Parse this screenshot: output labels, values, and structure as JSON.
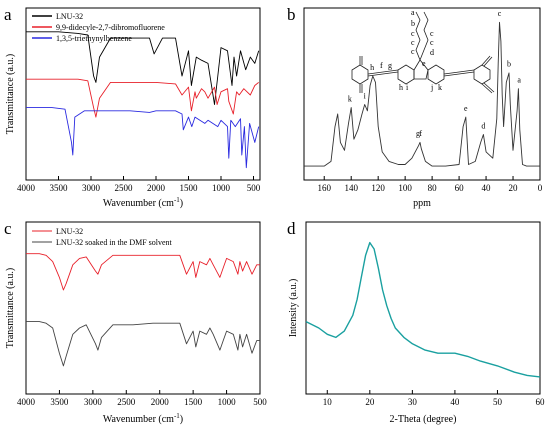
{
  "chart_data": [
    {
      "panel": "a",
      "type": "line",
      "xlabel": "Wavenumber (cm",
      "xlabel_sup": "-1",
      "xlabel_end": ")",
      "ylabel": "Transmittance (a.u.)",
      "xlim": [
        4000,
        400
      ],
      "xticks": [
        "4000",
        "3500",
        "3000",
        "2500",
        "2000",
        "1500",
        "1000",
        "500"
      ],
      "tick_values": [
        4000,
        3500,
        3000,
        2500,
        2000,
        1500,
        1000,
        500
      ],
      "series": [
        {
          "name": "LNU-32",
          "color": "#000000",
          "x": [
            4000,
            3500,
            3200,
            3050,
            2960,
            2925,
            2870,
            2700,
            2400,
            2100,
            2030,
            1900,
            1700,
            1600,
            1500,
            1455,
            1380,
            1300,
            1200,
            1100,
            1050,
            1000,
            900,
            830,
            800,
            760,
            700,
            620,
            550,
            480,
            420
          ],
          "y": [
            0.9,
            0.9,
            0.89,
            0.88,
            0.62,
            0.58,
            0.74,
            0.86,
            0.86,
            0.86,
            0.76,
            0.86,
            0.86,
            0.62,
            0.78,
            0.56,
            0.74,
            0.72,
            0.7,
            0.44,
            0.62,
            0.8,
            0.78,
            0.56,
            0.74,
            0.62,
            0.78,
            0.66,
            0.74,
            0.7,
            0.78
          ]
        },
        {
          "name": "9,9-didecyle-2,7-dibromofluorene",
          "color": "#e8202a",
          "x": [
            4000,
            3500,
            3200,
            3050,
            2960,
            2925,
            2870,
            2700,
            2400,
            2000,
            1700,
            1600,
            1500,
            1455,
            1400,
            1380,
            1300,
            1250,
            1200,
            1100,
            1060,
            1000,
            900,
            880,
            810,
            760,
            720,
            650,
            550,
            480,
            420
          ],
          "y": [
            0.6,
            0.6,
            0.6,
            0.59,
            0.42,
            0.36,
            0.48,
            0.58,
            0.58,
            0.58,
            0.57,
            0.5,
            0.55,
            0.4,
            0.52,
            0.48,
            0.54,
            0.52,
            0.48,
            0.55,
            0.44,
            0.52,
            0.54,
            0.46,
            0.38,
            0.52,
            0.5,
            0.54,
            0.5,
            0.56,
            0.58
          ]
        },
        {
          "name": "1,3,5-triethynylbenzene",
          "color": "#2a2ae0",
          "x": [
            4000,
            3600,
            3400,
            3300,
            3280,
            3250,
            3100,
            2700,
            2400,
            2100,
            2000,
            1700,
            1600,
            1580,
            1500,
            1450,
            1400,
            1250,
            1200,
            1050,
            1000,
            900,
            880,
            850,
            780,
            700,
            680,
            640,
            610,
            560,
            480,
            420
          ],
          "y": [
            0.42,
            0.42,
            0.41,
            0.2,
            0.12,
            0.36,
            0.4,
            0.4,
            0.4,
            0.39,
            0.4,
            0.4,
            0.38,
            0.28,
            0.36,
            0.3,
            0.36,
            0.32,
            0.34,
            0.3,
            0.34,
            0.3,
            0.1,
            0.34,
            0.3,
            0.35,
            0.12,
            0.3,
            0.04,
            0.32,
            0.2,
            0.3
          ]
        }
      ]
    },
    {
      "panel": "b",
      "type": "line",
      "xlabel": "ppm",
      "xlim": [
        175,
        0
      ],
      "xticks": [
        "160",
        "140",
        "120",
        "100",
        "80",
        "60",
        "40",
        "20",
        "0"
      ],
      "tick_values": [
        160,
        140,
        120,
        100,
        80,
        60,
        40,
        20,
        0
      ],
      "series": [
        {
          "name": "",
          "color": "#333333",
          "x": [
            175,
            160,
            155,
            152,
            150,
            148,
            145,
            142,
            140,
            138,
            135,
            132,
            130,
            128,
            126,
            124,
            122,
            120,
            117,
            112,
            105,
            100,
            95,
            90,
            89,
            88,
            85,
            80,
            70,
            60,
            57,
            55,
            53,
            48,
            44,
            42,
            40,
            35,
            32,
            31,
            30,
            29,
            28,
            27,
            25,
            23,
            22,
            20,
            17,
            16,
            15,
            13,
            10,
            5,
            0
          ],
          "y": [
            0.05,
            0.05,
            0.08,
            0.3,
            0.38,
            0.2,
            0.15,
            0.32,
            0.42,
            0.22,
            0.28,
            0.38,
            0.44,
            0.4,
            0.56,
            0.62,
            0.58,
            0.3,
            0.14,
            0.08,
            0.06,
            0.06,
            0.1,
            0.18,
            0.2,
            0.16,
            0.08,
            0.05,
            0.05,
            0.06,
            0.3,
            0.36,
            0.06,
            0.08,
            0.2,
            0.25,
            0.14,
            0.1,
            0.35,
            0.7,
            0.96,
            0.84,
            0.5,
            0.3,
            0.58,
            0.64,
            0.44,
            0.15,
            0.4,
            0.54,
            0.28,
            0.06,
            0.05,
            0.05,
            0.05
          ]
        }
      ],
      "peak_labels": [
        {
          "text": "k",
          "x": 141,
          "y": 0.44
        },
        {
          "text": "i",
          "x": 130,
          "y": 0.46
        },
        {
          "text": "h",
          "x": 124.5,
          "y": 0.64
        },
        {
          "text": "g",
          "x": 90.5,
          "y": 0.22
        },
        {
          "text": "f",
          "x": 88.5,
          "y": 0.22
        },
        {
          "text": "e",
          "x": 55,
          "y": 0.38
        },
        {
          "text": "d",
          "x": 42,
          "y": 0.27
        },
        {
          "text": "c",
          "x": 30,
          "y": 0.98
        },
        {
          "text": "b",
          "x": 23,
          "y": 0.66
        },
        {
          "text": "a",
          "x": 15.5,
          "y": 0.56
        }
      ],
      "structure_labels": [
        "a",
        "b",
        "c",
        "c",
        "c",
        "c",
        "c",
        "d",
        "e",
        "f",
        "g",
        "h",
        "i",
        "j",
        "k"
      ]
    },
    {
      "panel": "c",
      "type": "line",
      "xlabel": "Wavenumber (cm",
      "xlabel_sup": "-1",
      "xlabel_end": ")",
      "ylabel": "Transmittance (a.u.)",
      "xlim": [
        4000,
        500
      ],
      "xticks": [
        "4000",
        "3500",
        "3000",
        "2500",
        "2000",
        "1500",
        "1000",
        "500"
      ],
      "tick_values": [
        4000,
        3500,
        3000,
        2500,
        2000,
        1500,
        1000,
        500
      ],
      "series": [
        {
          "name": "LNU-32",
          "color": "#e8202a",
          "x": [
            4000,
            3800,
            3700,
            3600,
            3500,
            3440,
            3400,
            3300,
            3200,
            3100,
            2960,
            2925,
            2870,
            2700,
            2400,
            2100,
            1900,
            1700,
            1600,
            1500,
            1460,
            1400,
            1300,
            1250,
            1200,
            1100,
            1050,
            1000,
            900,
            830,
            800,
            760,
            700,
            620,
            550,
            500
          ],
          "y": [
            0.85,
            0.85,
            0.84,
            0.8,
            0.7,
            0.62,
            0.66,
            0.78,
            0.82,
            0.83,
            0.74,
            0.72,
            0.78,
            0.84,
            0.84,
            0.84,
            0.84,
            0.84,
            0.72,
            0.8,
            0.7,
            0.8,
            0.78,
            0.82,
            0.78,
            0.7,
            0.76,
            0.82,
            0.8,
            0.72,
            0.8,
            0.74,
            0.8,
            0.72,
            0.78,
            0.78
          ]
        },
        {
          "name": "LNU-32 soaked in the DMF solvent",
          "color": "#444444",
          "x": [
            4000,
            3800,
            3700,
            3600,
            3500,
            3440,
            3400,
            3300,
            3200,
            3100,
            2960,
            2925,
            2870,
            2700,
            2400,
            2100,
            1900,
            1700,
            1600,
            1500,
            1460,
            1400,
            1300,
            1250,
            1200,
            1100,
            1050,
            1000,
            900,
            830,
            800,
            760,
            700,
            620,
            550,
            500
          ],
          "y": [
            0.42,
            0.42,
            0.41,
            0.38,
            0.22,
            0.14,
            0.2,
            0.34,
            0.38,
            0.4,
            0.28,
            0.24,
            0.32,
            0.4,
            0.4,
            0.41,
            0.41,
            0.41,
            0.28,
            0.36,
            0.26,
            0.36,
            0.34,
            0.38,
            0.34,
            0.24,
            0.3,
            0.36,
            0.34,
            0.24,
            0.34,
            0.26,
            0.34,
            0.22,
            0.3,
            0.3
          ]
        }
      ]
    },
    {
      "panel": "d",
      "type": "line",
      "xlabel": "2-Theta (degree)",
      "ylabel": "Intensity (a.u.)",
      "xlim": [
        5,
        60
      ],
      "xticks": [
        "10",
        "20",
        "30",
        "40",
        "50",
        "60"
      ],
      "tick_values": [
        10,
        20,
        30,
        40,
        50,
        60
      ],
      "series": [
        {
          "name": "",
          "color": "#1aa0a0",
          "x": [
            5,
            8,
            10,
            12,
            14,
            16,
            17,
            18,
            19,
            20,
            21,
            22,
            23,
            24,
            25,
            26,
            28,
            30,
            33,
            36,
            40,
            43,
            46,
            50,
            54,
            57,
            60
          ],
          "y": [
            0.42,
            0.38,
            0.34,
            0.32,
            0.36,
            0.46,
            0.56,
            0.7,
            0.84,
            0.92,
            0.88,
            0.76,
            0.62,
            0.52,
            0.44,
            0.38,
            0.32,
            0.28,
            0.24,
            0.22,
            0.22,
            0.2,
            0.17,
            0.14,
            0.1,
            0.08,
            0.07
          ]
        }
      ]
    }
  ]
}
